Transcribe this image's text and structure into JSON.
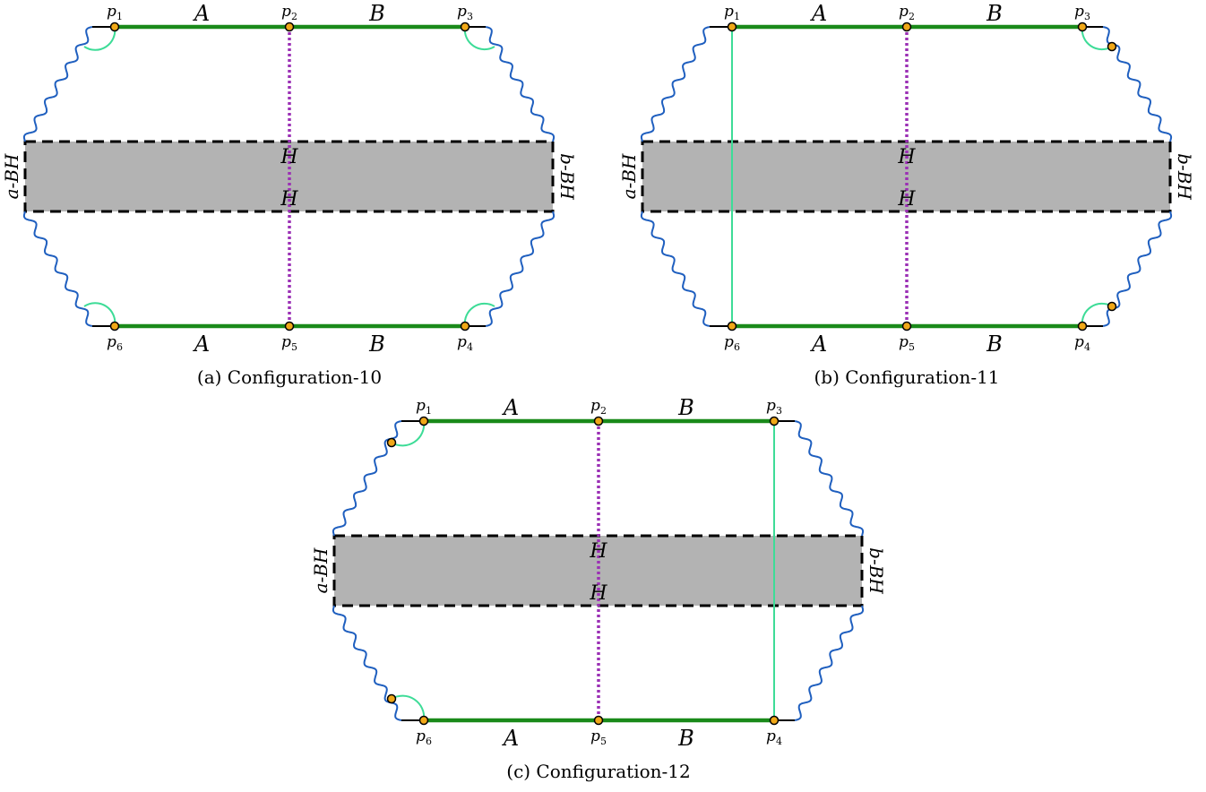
{
  "colors": {
    "boundary": "#1f5fbf",
    "horizon_fill": "#b3b3b3",
    "horizon_edge": "#000000",
    "strip": "#1a8a1a",
    "dual_line": "#9b30b5",
    "geodesic": "#3ddc97",
    "point_fill": "#f0a818",
    "point_stroke": "#000000"
  },
  "panels": [
    {
      "id": "a",
      "caption": "(a) Configuration-10",
      "left_label": "a-BH",
      "right_label": "b-BH",
      "horizon_labels": [
        "H",
        "H"
      ],
      "top_regions": [
        "A",
        "B"
      ],
      "bottom_regions": [
        "A",
        "B"
      ],
      "points_top": [
        {
          "name": "p",
          "sub": "1"
        },
        {
          "name": "p",
          "sub": "2"
        },
        {
          "name": "p",
          "sub": "3"
        }
      ],
      "points_bottom": [
        {
          "name": "p",
          "sub": "6"
        },
        {
          "name": "p",
          "sub": "5"
        },
        {
          "name": "p",
          "sub": "4"
        }
      ]
    },
    {
      "id": "b",
      "caption": "(b) Configuration-11",
      "left_label": "a-BH",
      "right_label": "b-BH",
      "horizon_labels": [
        "H",
        "H"
      ],
      "top_regions": [
        "A",
        "B"
      ],
      "bottom_regions": [
        "A",
        "B"
      ],
      "points_top": [
        {
          "name": "p",
          "sub": "1"
        },
        {
          "name": "p",
          "sub": "2"
        },
        {
          "name": "p",
          "sub": "3"
        }
      ],
      "points_bottom": [
        {
          "name": "p",
          "sub": "6"
        },
        {
          "name": "p",
          "sub": "5"
        },
        {
          "name": "p",
          "sub": "4"
        }
      ]
    },
    {
      "id": "c",
      "caption": "(c) Configuration-12",
      "left_label": "a-BH",
      "right_label": "b-BH",
      "horizon_labels": [
        "H",
        "H"
      ],
      "top_regions": [
        "A",
        "B"
      ],
      "bottom_regions": [
        "A",
        "B"
      ],
      "points_top": [
        {
          "name": "p",
          "sub": "1"
        },
        {
          "name": "p",
          "sub": "2"
        },
        {
          "name": "p",
          "sub": "3"
        }
      ],
      "points_bottom": [
        {
          "name": "p",
          "sub": "6"
        },
        {
          "name": "p",
          "sub": "5"
        },
        {
          "name": "p",
          "sub": "4"
        }
      ]
    }
  ]
}
